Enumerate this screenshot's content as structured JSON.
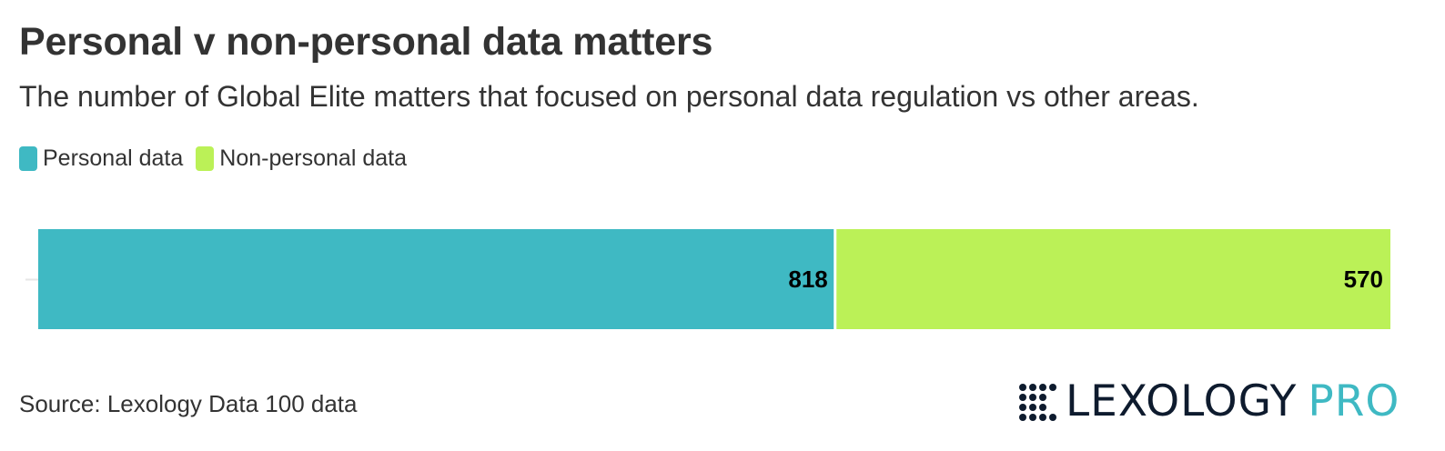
{
  "title": "Personal v non-personal data matters",
  "subtitle": "The number of Global Elite matters that focused on personal data regulation vs other areas.",
  "legend": [
    {
      "label": "Personal data",
      "color": "#3fb9c3"
    },
    {
      "label": "Non-personal data",
      "color": "#bbf157"
    }
  ],
  "chart_data": {
    "type": "bar",
    "orientation": "horizontal",
    "stacked": true,
    "categories": [
      ""
    ],
    "series": [
      {
        "name": "Personal data",
        "values": [
          818
        ],
        "color": "#3fb9c3"
      },
      {
        "name": "Non-personal data",
        "values": [
          570
        ],
        "color": "#bbf157"
      }
    ],
    "data_labels": [
      "818",
      "570"
    ],
    "xlim": [
      0,
      1388
    ],
    "grid": false,
    "legend_position": "top-left"
  },
  "source": "Source: Lexology Data 100 data",
  "logo": {
    "main": "LEXOLOGY",
    "accent": "PRO",
    "icon": "dot-grid-icon",
    "main_color": "#0e1b2e",
    "accent_color": "#3fb9c3"
  }
}
